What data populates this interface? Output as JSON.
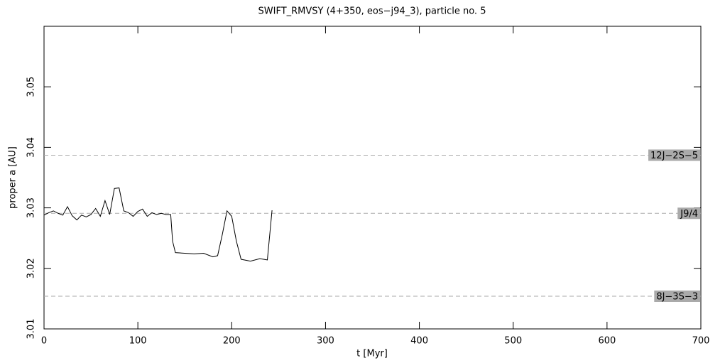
{
  "chart_data": {
    "type": "line",
    "title": "SWIFT_RMVSY (4+350, eos−j94_3), particle no. 5",
    "xlabel": "t [Myr]",
    "ylabel": "proper a [AU]",
    "x": [
      0,
      5,
      10,
      15,
      20,
      25,
      30,
      35,
      40,
      45,
      50,
      55,
      60,
      65,
      70,
      75,
      80,
      85,
      90,
      95,
      100,
      105,
      110,
      115,
      120,
      125,
      130,
      135,
      137,
      140,
      150,
      160,
      170,
      180,
      185,
      190,
      195,
      200,
      205,
      210,
      220,
      230,
      238,
      243
    ],
    "values": [
      3.0288,
      3.0292,
      3.0295,
      3.0291,
      3.0288,
      3.0302,
      3.0287,
      3.028,
      3.0288,
      3.0285,
      3.0289,
      3.0299,
      3.0286,
      3.0312,
      3.0289,
      3.0332,
      3.0333,
      3.0295,
      3.0292,
      3.0286,
      3.0294,
      3.0298,
      3.0286,
      3.0292,
      3.0289,
      3.0291,
      3.0289,
      3.0289,
      3.0245,
      3.0226,
      3.0225,
      3.0224,
      3.0225,
      3.0219,
      3.0221,
      3.0256,
      3.0295,
      3.0286,
      3.0245,
      3.0215,
      3.0212,
      3.0216,
      3.0214,
      3.0296
    ],
    "color": "#000000",
    "xlim": [
      0,
      700
    ],
    "xticks": [
      0,
      100,
      200,
      300,
      400,
      500,
      600,
      700
    ],
    "ylim": [
      3.01,
      3.06
    ],
    "yticks": [
      3.01,
      3.02,
      3.03,
      3.04,
      3.05
    ],
    "reference_lines": [
      {
        "label": "12J−2S−5",
        "value": 3.0387
      },
      {
        "label": "J9/4",
        "value": 3.0291
      },
      {
        "label": "8J−3S−3",
        "value": 3.0154
      }
    ]
  }
}
